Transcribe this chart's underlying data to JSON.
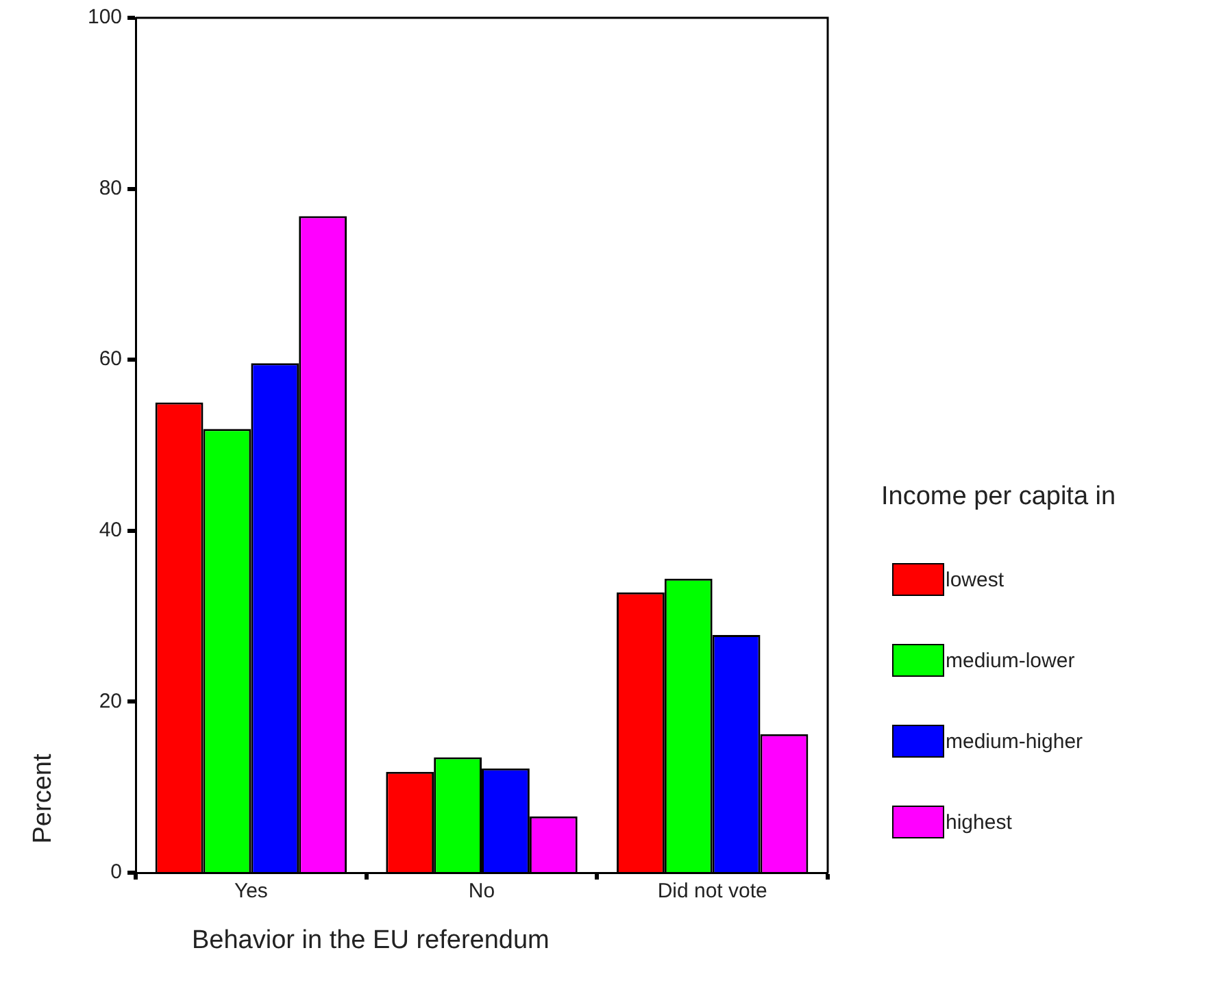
{
  "chart_data": {
    "type": "bar",
    "xlabel": "Behavior in the EU referendum",
    "ylabel": "Percent",
    "legend_title": "Income per capita in",
    "categories": [
      "Yes",
      "No",
      "Did not vote"
    ],
    "series": [
      {
        "name": "lowest",
        "color": "#ff0000",
        "values": [
          55.0,
          11.8,
          32.8
        ]
      },
      {
        "name": "medium-lower",
        "color": "#00ff00",
        "values": [
          51.9,
          13.5,
          34.4
        ]
      },
      {
        "name": "medium-higher",
        "color": "#0000ff",
        "values": [
          59.6,
          12.2,
          27.8
        ]
      },
      {
        "name": "highest",
        "color": "#ff00ff",
        "values": [
          76.8,
          6.6,
          16.2
        ]
      }
    ],
    "ylim": [
      0,
      100
    ],
    "yticks": [
      0,
      20,
      40,
      60,
      80,
      100
    ],
    "grid": false,
    "legend": "right"
  }
}
